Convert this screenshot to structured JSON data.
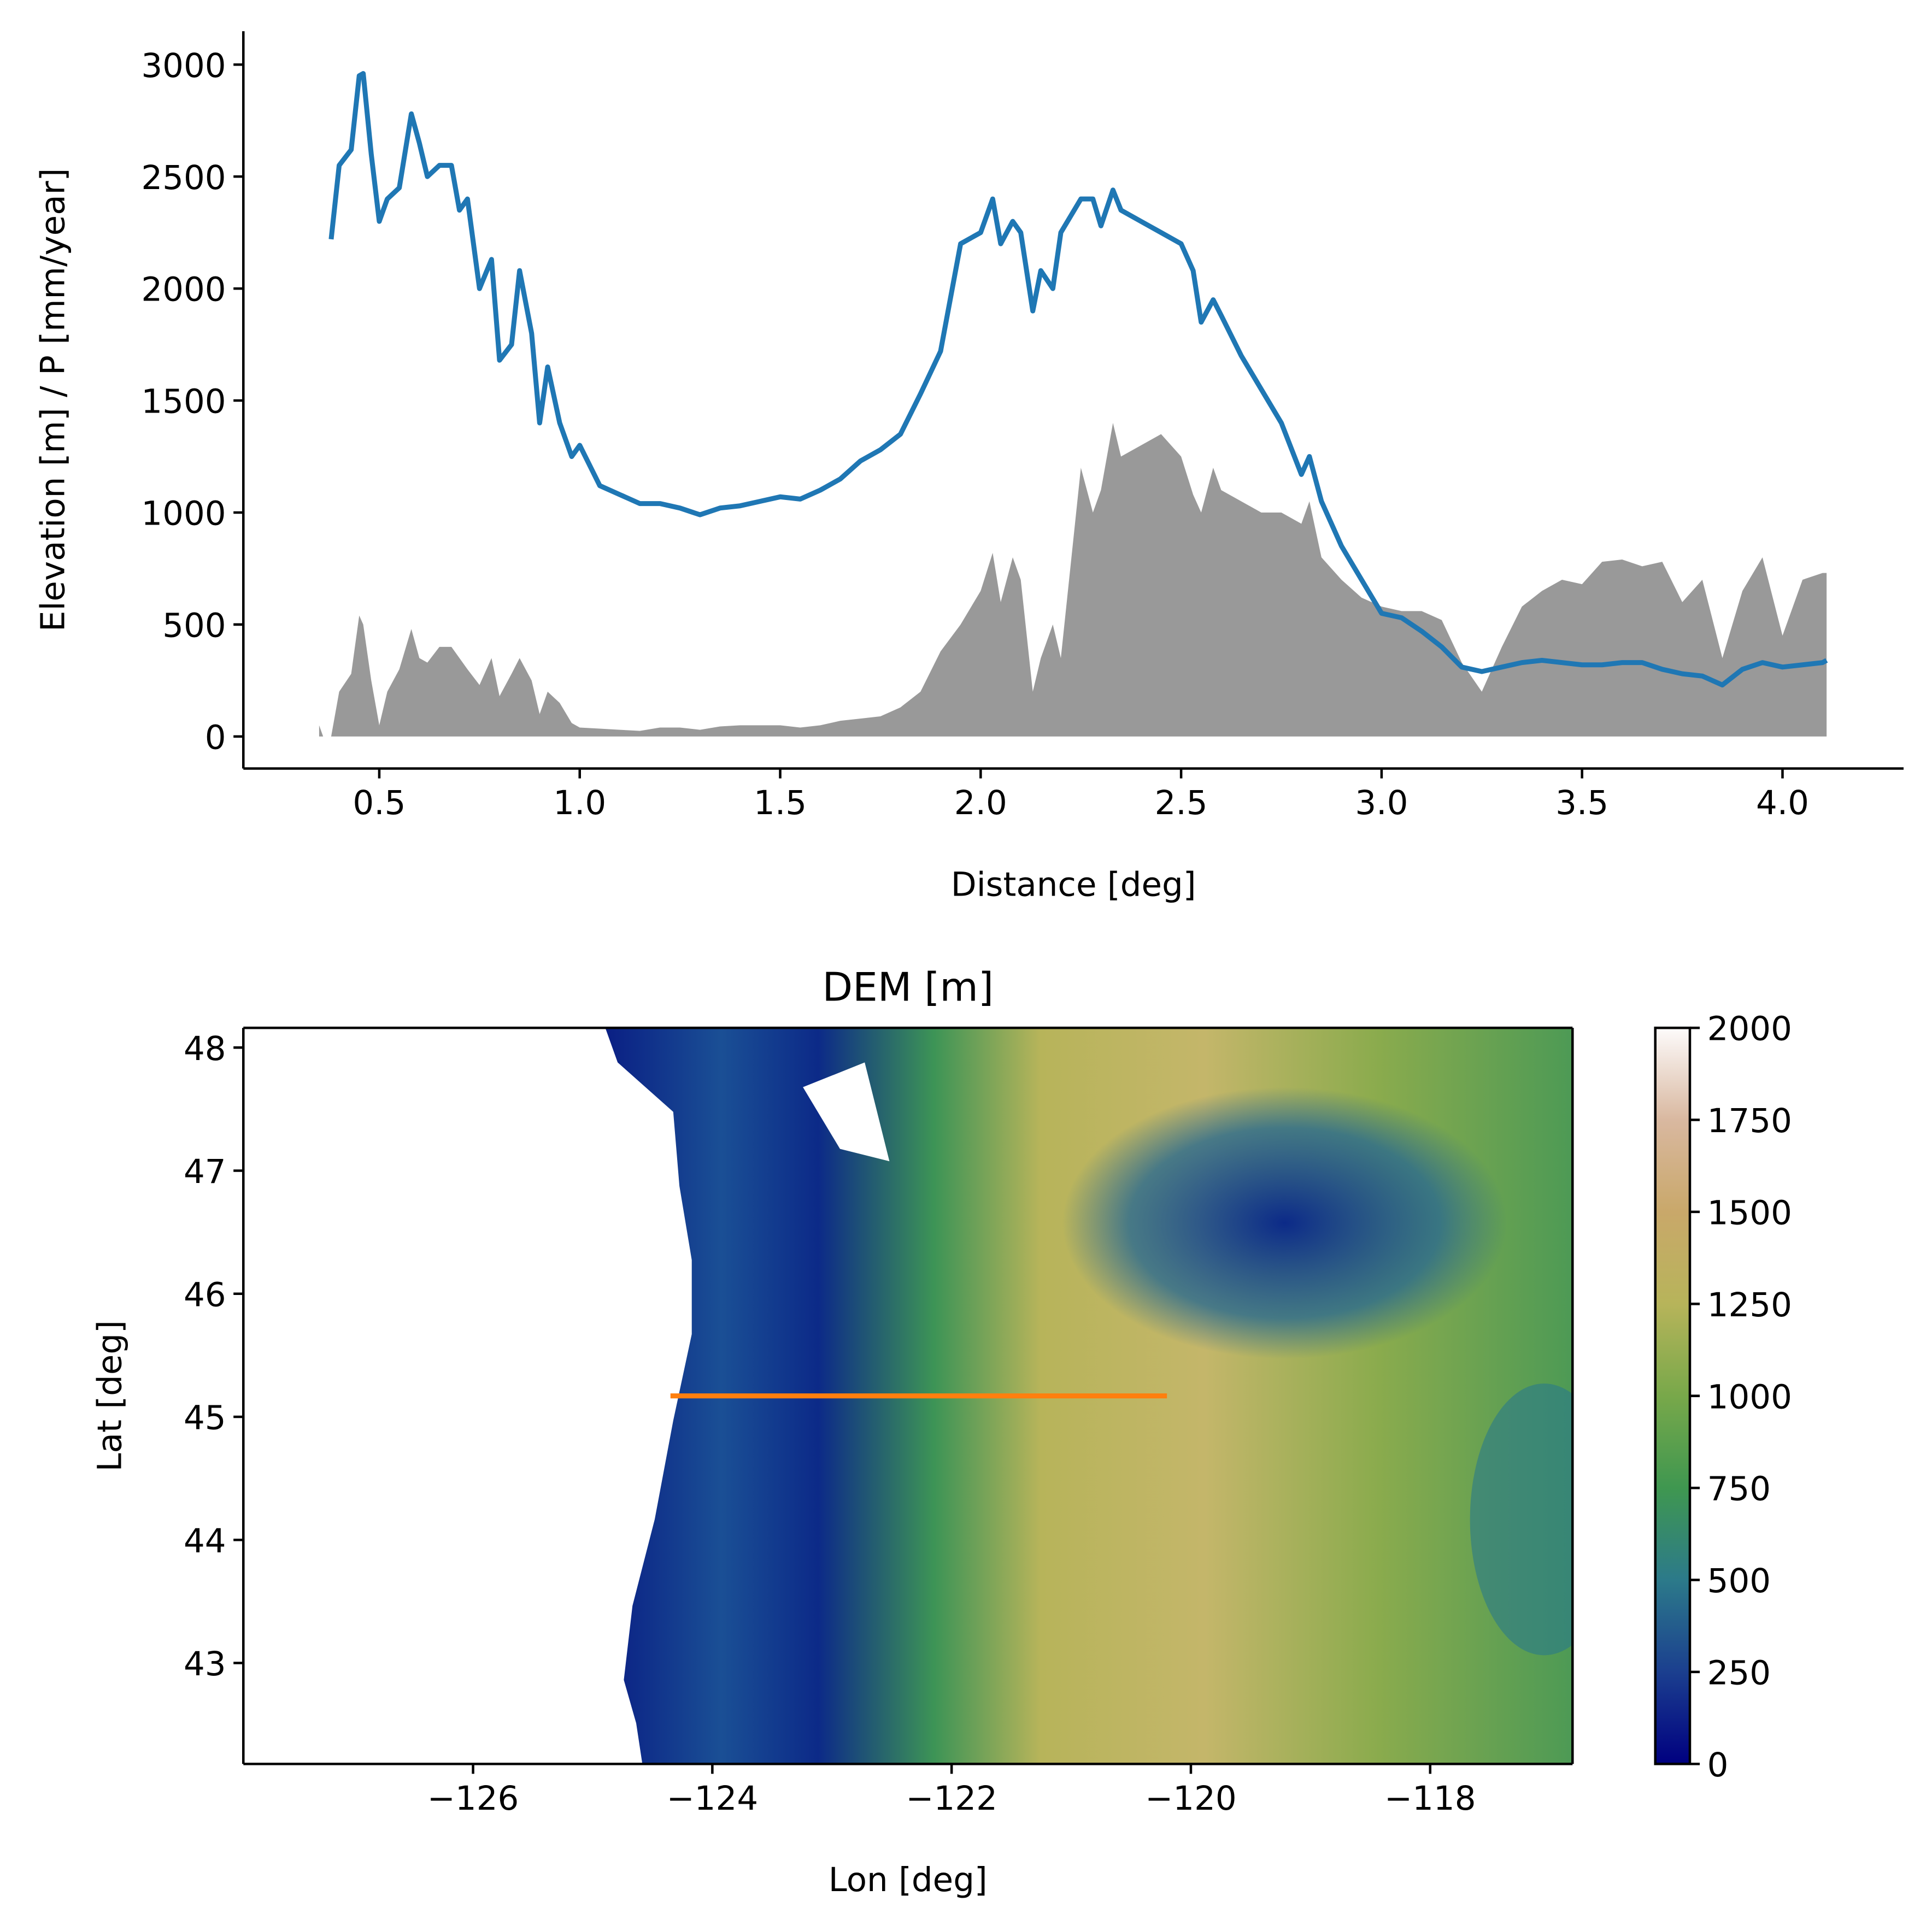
{
  "chart_data": [
    {
      "type": "line",
      "xlabel": "Distance [deg]",
      "ylabel": "Elevation [m] / P [mm/year]",
      "xlim": [
        0.161,
        4.302
      ],
      "ylim": [
        -143,
        3149
      ],
      "xticks": [
        {
          "value": 0.5,
          "label": "0.5"
        },
        {
          "value": 1,
          "label": "1.0"
        },
        {
          "value": 1.5,
          "label": "1.5"
        },
        {
          "value": 2,
          "label": "2.0"
        },
        {
          "value": 2.5,
          "label": "2.5"
        },
        {
          "value": 3,
          "label": "3.0"
        },
        {
          "value": 3.5,
          "label": "3.5"
        },
        {
          "value": 4,
          "label": "4.0"
        }
      ],
      "yticks": [
        0,
        500,
        1000,
        1500,
        2000,
        2500,
        3000
      ],
      "x": [
        0.35,
        0.36,
        0.38,
        0.4,
        0.43,
        0.45,
        0.46,
        0.48,
        0.5,
        0.52,
        0.55,
        0.58,
        0.6,
        0.62,
        0.65,
        0.68,
        0.7,
        0.72,
        0.75,
        0.78,
        0.8,
        0.83,
        0.85,
        0.88,
        0.9,
        0.92,
        0.95,
        0.98,
        1,
        1.05,
        1.1,
        1.15,
        1.2,
        1.25,
        1.3,
        1.35,
        1.4,
        1.45,
        1.5,
        1.55,
        1.6,
        1.65,
        1.7,
        1.75,
        1.8,
        1.85,
        1.9,
        1.95,
        2,
        2.03,
        2.05,
        2.08,
        2.1,
        2.13,
        2.15,
        2.18,
        2.2,
        2.25,
        2.28,
        2.3,
        2.33,
        2.35,
        2.4,
        2.45,
        2.5,
        2.53,
        2.55,
        2.58,
        2.6,
        2.65,
        2.7,
        2.75,
        2.8,
        2.82,
        2.85,
        2.9,
        2.95,
        3,
        3.05,
        3.1,
        3.15,
        3.2,
        3.25,
        3.3,
        3.35,
        3.4,
        3.45,
        3.5,
        3.55,
        3.6,
        3.65,
        3.7,
        3.75,
        3.8,
        3.85,
        3.9,
        3.95,
        4,
        4.05,
        4.1,
        4.11
      ],
      "series": [
        {
          "color": "#999999",
          "fill": true,
          "values": [
            50,
            0,
            0,
            200,
            280,
            540,
            500,
            250,
            50,
            200,
            300,
            480,
            350,
            330,
            400,
            400,
            350,
            300,
            230,
            350,
            180,
            280,
            350,
            250,
            100,
            200,
            150,
            60,
            40,
            35,
            30,
            25,
            40,
            40,
            30,
            45,
            50,
            50,
            50,
            40,
            50,
            70,
            80,
            90,
            130,
            200,
            380,
            500,
            650,
            820,
            600,
            800,
            700,
            200,
            350,
            500,
            350,
            1200,
            1000,
            1100,
            1400,
            1250,
            1300,
            1350,
            1250,
            1080,
            1000,
            1200,
            1100,
            1050,
            1000,
            1000,
            950,
            1050,
            800,
            700,
            620,
            580,
            560,
            560,
            520,
            330,
            200,
            400,
            580,
            650,
            700,
            680,
            780,
            790,
            760,
            780,
            600,
            700,
            350,
            650,
            800,
            450,
            700,
            730,
            730
          ]
        },
        {
          "color": "#1f77b4",
          "fill": false,
          "values": [
            2320,
            null,
            2220,
            2550,
            2620,
            2950,
            2960,
            2600,
            2300,
            2400,
            2450,
            2780,
            2650,
            2500,
            2550,
            2550,
            2350,
            2400,
            2000,
            2130,
            1680,
            1750,
            2080,
            1800,
            1400,
            1650,
            1400,
            1250,
            1300,
            1120,
            1080,
            1040,
            1040,
            1020,
            990,
            1020,
            1030,
            1050,
            1070,
            1060,
            1100,
            1150,
            1230,
            1280,
            1350,
            1530,
            1720,
            2200,
            2250,
            2400,
            2200,
            2300,
            2250,
            1900,
            2080,
            2000,
            2250,
            2400,
            2400,
            2280,
            2440,
            2350,
            2300,
            2250,
            2200,
            2080,
            1850,
            1950,
            1880,
            1700,
            1550,
            1400,
            1170,
            1250,
            1050,
            850,
            700,
            550,
            530,
            470,
            400,
            310,
            290,
            310,
            330,
            340,
            330,
            320,
            320,
            330,
            330,
            300,
            280,
            270,
            230,
            300,
            330,
            310,
            320,
            330,
            340
          ]
        }
      ]
    },
    {
      "type": "line",
      "title": "DEM [m]",
      "xlabel": "Lon [deg]",
      "ylabel": "Lat [deg]",
      "xlim": [
        -127.92,
        -116.81
      ],
      "ylim": [
        42.18,
        48.16
      ],
      "xticks": [
        {
          "value": -126,
          "label": "−126"
        },
        {
          "value": -124,
          "label": "−124"
        },
        {
          "value": -122,
          "label": "−122"
        },
        {
          "value": -120,
          "label": "−120"
        },
        {
          "value": -118,
          "label": "−118"
        }
      ],
      "yticks": [
        43,
        44,
        45,
        46,
        47,
        48
      ],
      "x": [
        -124.35,
        -120.2
      ],
      "series": [
        {
          "color": "#ff7f0e",
          "fill": false,
          "values": [
            45.17,
            45.17
          ]
        }
      ],
      "colorbar": {
        "lim": [
          0,
          2000
        ],
        "ticks": [
          0,
          250,
          500,
          750,
          1000,
          1250,
          1500,
          1750,
          2000
        ],
        "colors": [
          "#000080",
          "#1b3f8f",
          "#2c7a8a",
          "#3f9750",
          "#78a84a",
          "#b7b45a",
          "#c9a86a",
          "#d9b8a0",
          "#fdfbfb"
        ]
      }
    }
  ]
}
